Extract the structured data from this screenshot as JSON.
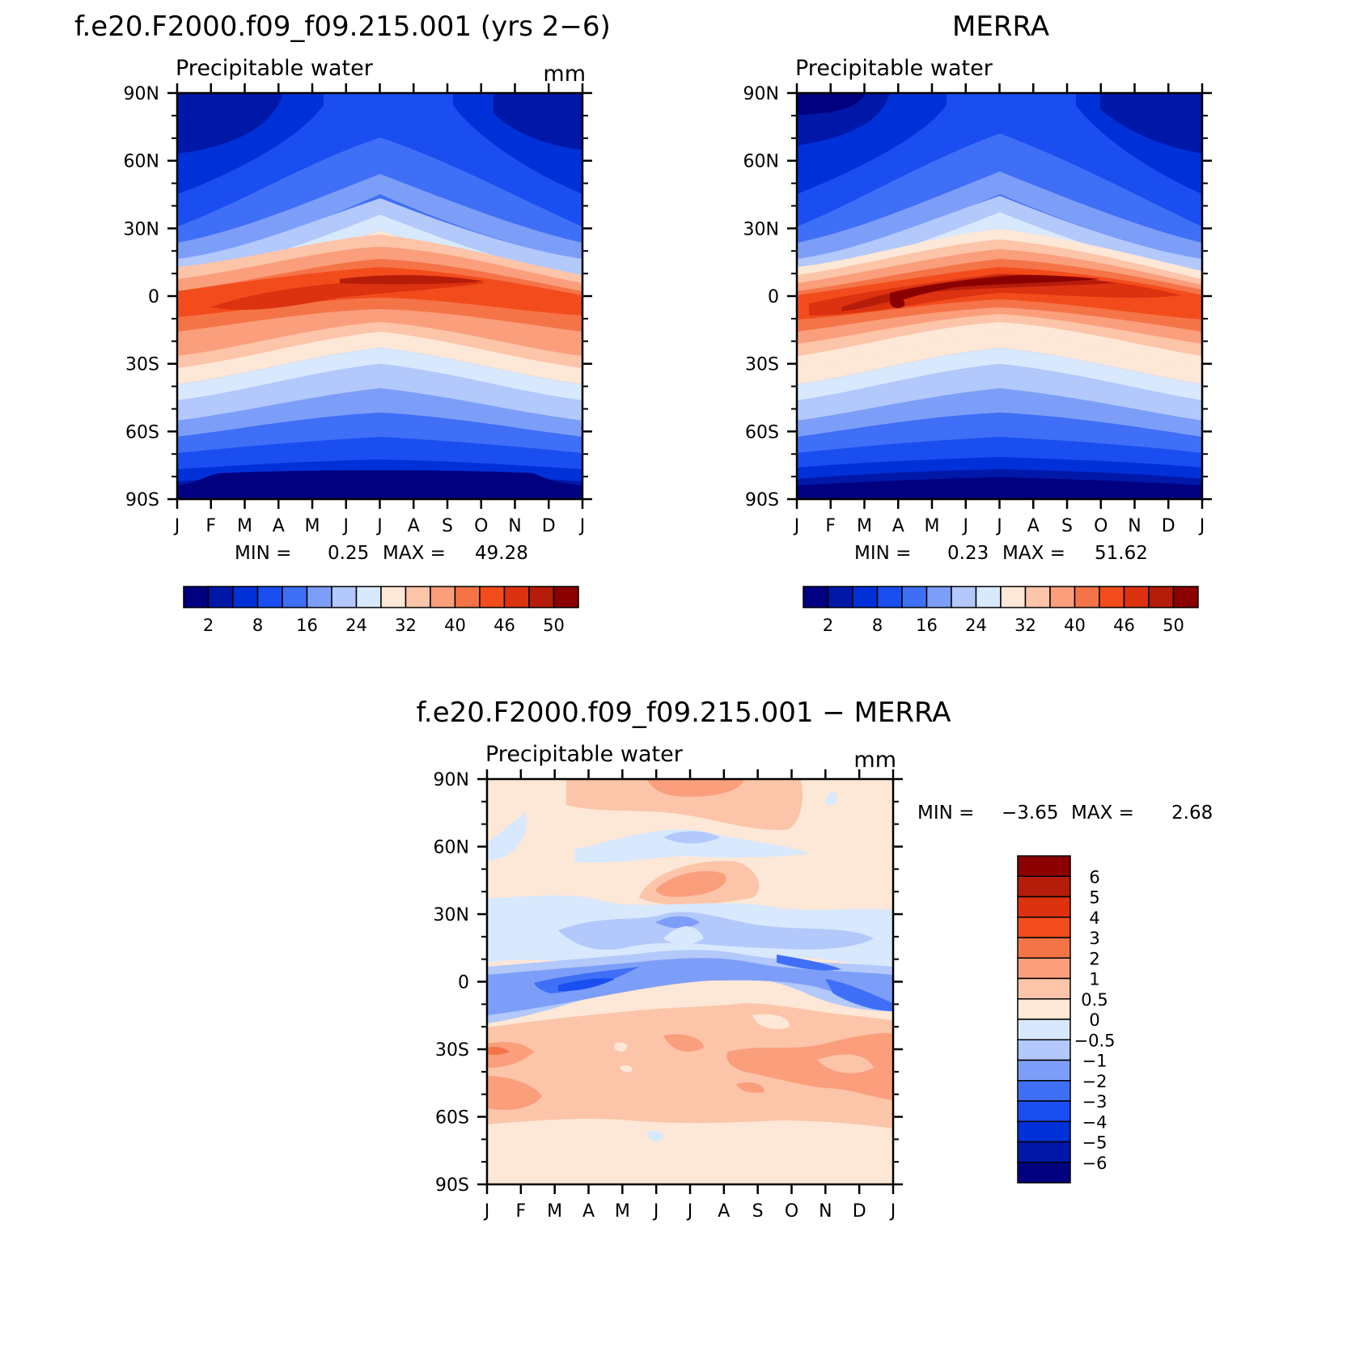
{
  "chart_data": [
    {
      "type": "heatmap",
      "title": "f.e20.F2000.f09_f09.215.001 (yrs 2−6)",
      "subtitle": "Precipitable water",
      "units": "mm",
      "x_ticks": [
        "J",
        "F",
        "M",
        "A",
        "M",
        "J",
        "J",
        "A",
        "S",
        "O",
        "N",
        "D",
        "J"
      ],
      "y_ticks": [
        "90N",
        "60N",
        "30N",
        "0",
        "30S",
        "60S",
        "90S"
      ],
      "stats": {
        "min_label": "MIN =",
        "min": "0.25",
        "max_label": "MAX =",
        "max": "49.28"
      },
      "colorbar": {
        "labels": [
          "2",
          "8",
          "16",
          "24",
          "32",
          "40",
          "46",
          "50"
        ],
        "colors": [
          "#000080",
          "#0018a8",
          "#0030d8",
          "#1a4ef0",
          "#3f6ff6",
          "#7d9ef8",
          "#b3c8fb",
          "#d8e8fd",
          "#fde7d6",
          "#fcc4a8",
          "#fa9e7c",
          "#f47448",
          "#f34c1c",
          "#dc3210",
          "#b51c0a",
          "#8b0000"
        ]
      }
    },
    {
      "type": "heatmap",
      "title": "MERRA",
      "subtitle": "Precipitable water",
      "units": "",
      "x_ticks": [
        "J",
        "F",
        "M",
        "A",
        "M",
        "J",
        "J",
        "A",
        "S",
        "O",
        "N",
        "D",
        "J"
      ],
      "y_ticks": [
        "90N",
        "60N",
        "30N",
        "0",
        "30S",
        "60S",
        "90S"
      ],
      "stats": {
        "min_label": "MIN =",
        "min": "0.23",
        "max_label": "MAX =",
        "max": "51.62"
      },
      "colorbar": {
        "labels": [
          "2",
          "8",
          "16",
          "24",
          "32",
          "40",
          "46",
          "50"
        ],
        "colors": [
          "#000080",
          "#0018a8",
          "#0030d8",
          "#1a4ef0",
          "#3f6ff6",
          "#7d9ef8",
          "#b3c8fb",
          "#d8e8fd",
          "#fde7d6",
          "#fcc4a8",
          "#fa9e7c",
          "#f47448",
          "#f34c1c",
          "#dc3210",
          "#b51c0a",
          "#8b0000"
        ]
      }
    },
    {
      "type": "heatmap",
      "title": "f.e20.F2000.f09_f09.215.001 − MERRA",
      "subtitle": "Precipitable water",
      "units": "mm",
      "x_ticks": [
        "J",
        "F",
        "M",
        "A",
        "M",
        "J",
        "J",
        "A",
        "S",
        "O",
        "N",
        "D",
        "J"
      ],
      "y_ticks": [
        "90N",
        "60N",
        "30N",
        "0",
        "30S",
        "60S",
        "90S"
      ],
      "stats": {
        "min_label": "MIN =",
        "min": "−3.65",
        "max_label": "MAX =",
        "max": "2.68"
      },
      "colorbar": {
        "labels": [
          "6",
          "5",
          "4",
          "3",
          "2",
          "1",
          "0.5",
          "0",
          "−0.5",
          "−1",
          "−2",
          "−3",
          "−4",
          "−5",
          "−6"
        ],
        "colors": [
          "#8b0000",
          "#b51c0a",
          "#dc3210",
          "#f34c1c",
          "#f47448",
          "#fa9e7c",
          "#fcc4a8",
          "#fde7d6",
          "#d8e8fd",
          "#b3c8fb",
          "#7d9ef8",
          "#3f6ff6",
          "#1a4ef0",
          "#0030d8",
          "#0018a8",
          "#000080"
        ]
      }
    }
  ]
}
